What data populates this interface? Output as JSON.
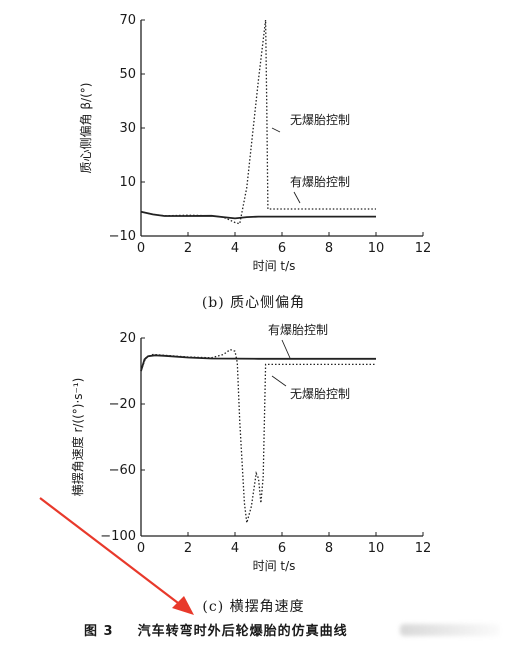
{
  "charts": [
    {
      "id": "beta",
      "ylabel": "质心侧偏角 β/(°)",
      "xlabel": "时间 t/s",
      "caption": "(b) 质心侧偏角",
      "x_ticks": [
        "0",
        "2",
        "4",
        "6",
        "8",
        "10",
        "12"
      ],
      "y_ticks": [
        "70",
        "50",
        "30",
        "10",
        "−10"
      ]
    },
    {
      "id": "r",
      "ylabel": "横摆角速度 r/((°)·s⁻¹)",
      "xlabel": "时间 t/s",
      "caption": "(c) 横摆角速度",
      "x_ticks": [
        "0",
        "2",
        "4",
        "6",
        "8",
        "10",
        "12"
      ],
      "y_ticks": [
        "20",
        "−20",
        "−60",
        "−100"
      ]
    }
  ],
  "figure_caption": {
    "number": "图 3",
    "text": "汽车转弯时外后轮爆胎的仿真曲线"
  },
  "chart_data": [
    {
      "type": "line",
      "xlabel": "时间 t/s",
      "ylabel": "质心侧偏角 β/(°)",
      "xlim": [
        0,
        12
      ],
      "ylim": [
        -10,
        70
      ],
      "grid": false,
      "series": [
        {
          "name": "无爆胎控制",
          "style": "dotted",
          "x": [
            0,
            0.5,
            1,
            2,
            3,
            3.5,
            4.0,
            4.2,
            4.5,
            5.0,
            5.3,
            5.35,
            5.4,
            6,
            8,
            10
          ],
          "y": [
            -1,
            -2,
            -2.5,
            -2.3,
            -2.5,
            -3,
            -5,
            -5.5,
            8,
            48,
            70,
            40,
            0,
            0,
            0,
            0
          ]
        },
        {
          "name": "有爆胎控制",
          "style": "solid",
          "x": [
            0,
            0.5,
            1,
            2,
            3,
            3.5,
            4.0,
            4.5,
            5.0,
            6,
            8,
            10
          ],
          "y": [
            -1,
            -2,
            -2.6,
            -2.6,
            -2.5,
            -3,
            -3.5,
            -3,
            -2.8,
            -2.8,
            -2.8,
            -2.8
          ]
        }
      ]
    },
    {
      "type": "line",
      "xlabel": "时间 t/s",
      "ylabel": "横摆角速度 r/((°)·s⁻¹)",
      "xlim": [
        0,
        12
      ],
      "ylim": [
        -100,
        20
      ],
      "grid": false,
      "series": [
        {
          "name": "有爆胎控制",
          "style": "solid",
          "x": [
            0,
            0.15,
            0.3,
            0.6,
            1,
            2,
            3,
            4,
            5,
            6,
            8,
            10
          ],
          "y": [
            0,
            7,
            9,
            9.5,
            9.2,
            8.2,
            7.6,
            7.5,
            7.4,
            7.4,
            7.4,
            7.4
          ]
        },
        {
          "name": "无爆胎控制",
          "style": "dotted",
          "x": [
            0,
            0.2,
            0.5,
            1,
            2,
            3,
            3.5,
            3.8,
            4.0,
            4.1,
            4.2,
            4.4,
            4.5,
            4.7,
            4.9,
            5.0,
            5.1,
            5.2,
            5.3,
            6,
            8,
            10
          ],
          "y": [
            0,
            8,
            10,
            9.5,
            8.5,
            8,
            10,
            13,
            12,
            5,
            -30,
            -80,
            -92,
            -82,
            -62,
            -65,
            -80,
            -64,
            4,
            4,
            4,
            4
          ]
        }
      ]
    }
  ]
}
